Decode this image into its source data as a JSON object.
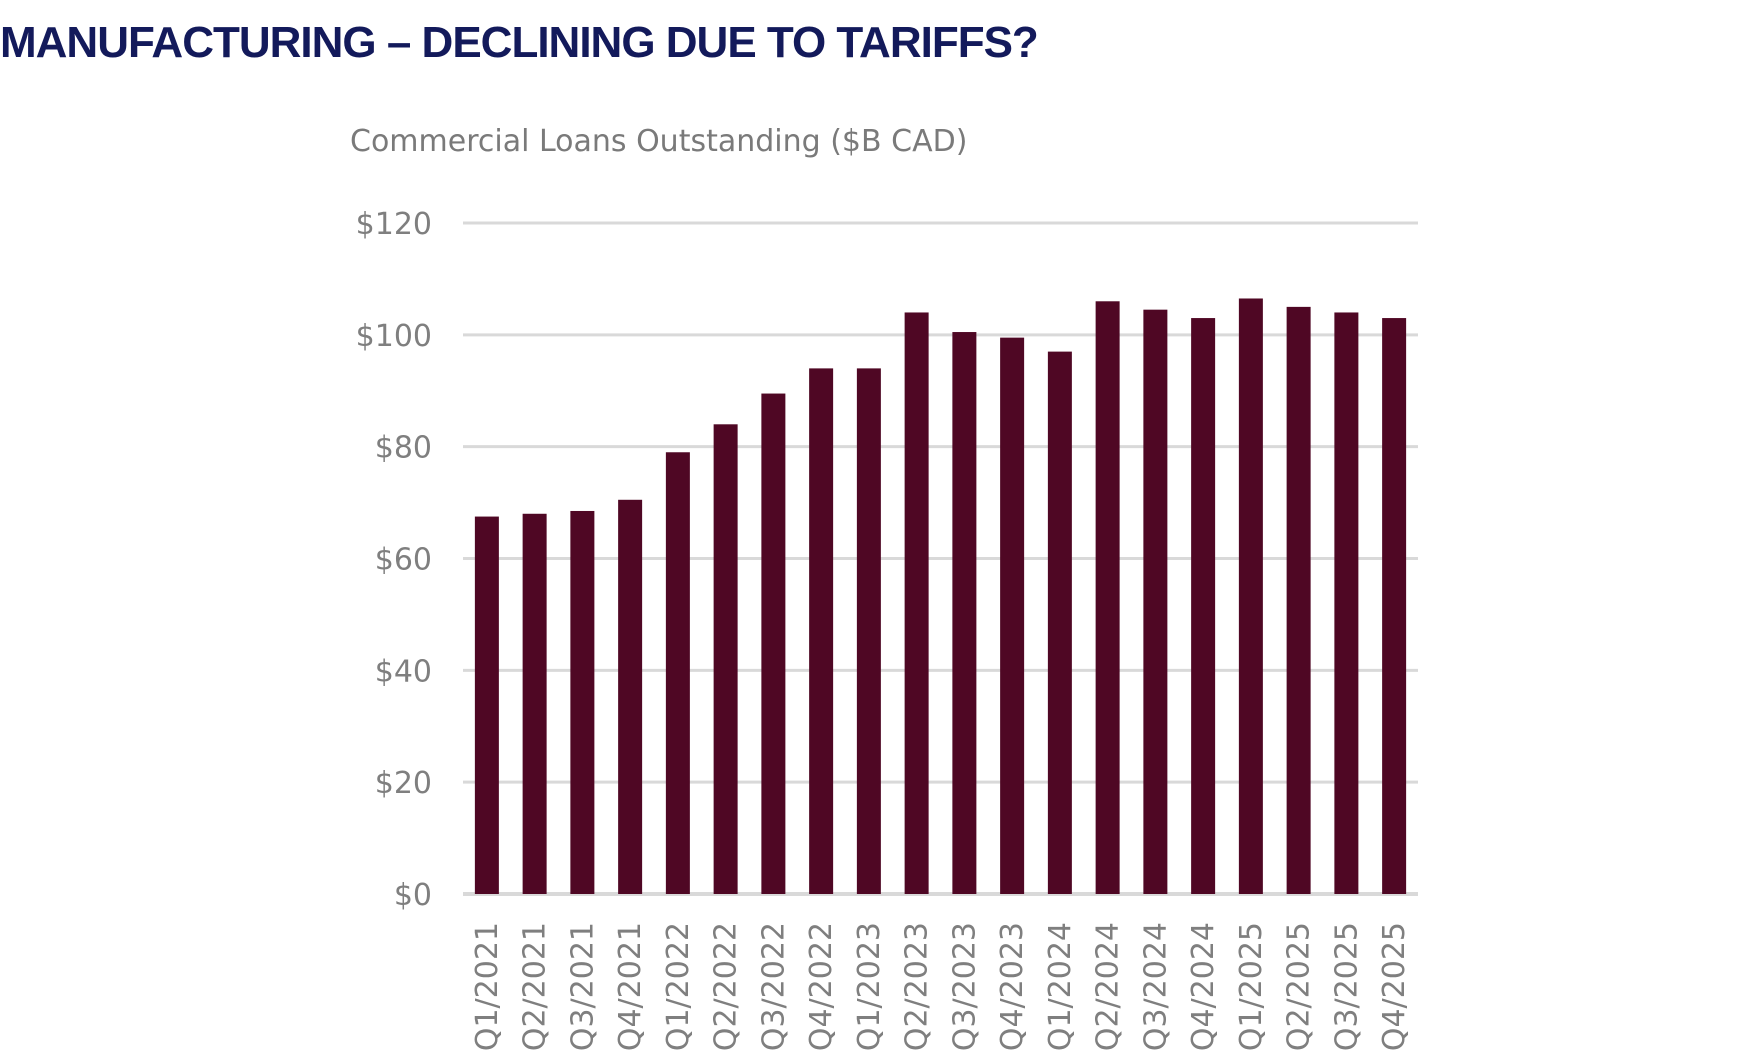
{
  "slide": {
    "title": "MANUFACTURING – DECLINING DUE TO TARIFFS?"
  },
  "colors": {
    "title": "#131a5b",
    "bar": "#4f0724",
    "grid": "#d9d9d9",
    "axis_text": "#7f7f7f"
  },
  "chart_data": {
    "type": "bar",
    "title": "Commercial Loans Outstanding ($B CAD)",
    "xlabel": "",
    "ylabel": "",
    "ylim": [
      0,
      120
    ],
    "yticks": [
      0,
      20,
      40,
      60,
      80,
      100,
      120
    ],
    "ytick_labels": [
      "$0",
      "$20",
      "$40",
      "$60",
      "$80",
      "$100",
      "$120"
    ],
    "grid": true,
    "legend": "none",
    "categories": [
      "Q1/2021",
      "Q2/2021",
      "Q3/2021",
      "Q4/2021",
      "Q1/2022",
      "Q2/2022",
      "Q3/2022",
      "Q4/2022",
      "Q1/2023",
      "Q2/2023",
      "Q3/2023",
      "Q4/2023",
      "Q1/2024",
      "Q2/2024",
      "Q3/2024",
      "Q4/2024",
      "Q1/2025",
      "Q2/2025",
      "Q3/2025",
      "Q4/2025"
    ],
    "values": [
      67.5,
      68,
      68.5,
      70.5,
      79,
      84,
      89.5,
      94,
      94,
      104,
      100.5,
      99.5,
      97,
      106,
      104.5,
      103,
      106.5,
      105,
      104,
      103
    ]
  }
}
